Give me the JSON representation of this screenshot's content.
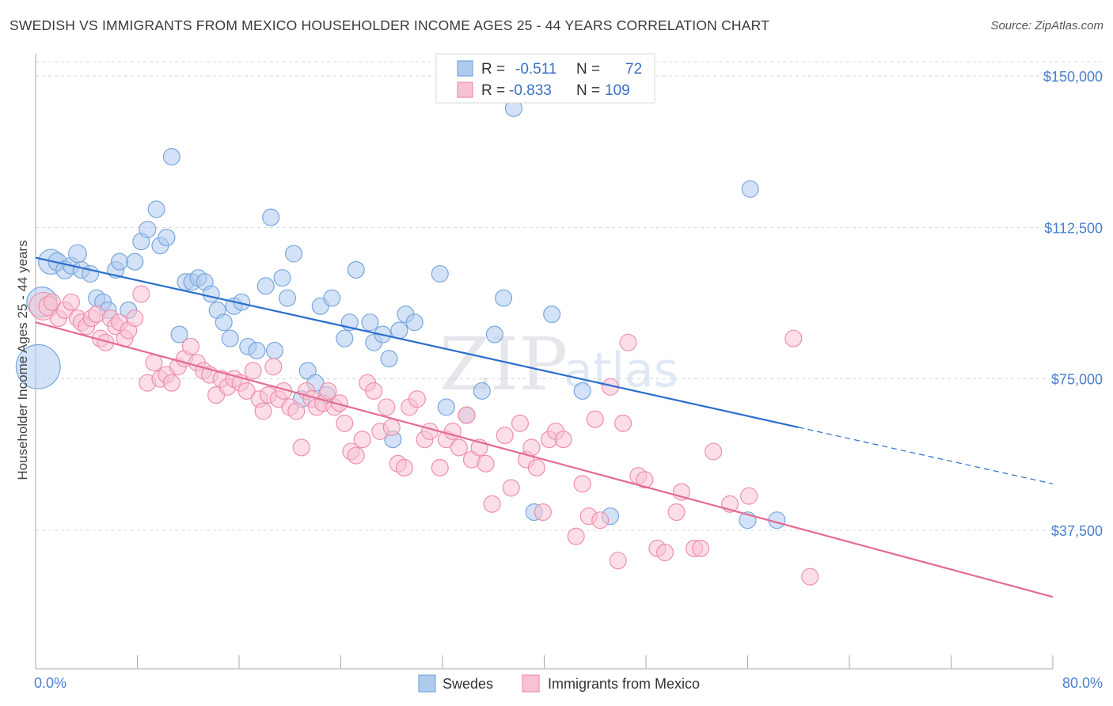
{
  "header": {
    "title": "SWEDISH VS IMMIGRANTS FROM MEXICO HOUSEHOLDER INCOME AGES 25 - 44 YEARS CORRELATION CHART",
    "source": "Source: ZipAtlas.com"
  },
  "watermark": {
    "zip": "ZIP",
    "atlas": "atlas"
  },
  "legend": {
    "r_label": "R =",
    "n_label": "N =",
    "swedes": {
      "r": "-0.511",
      "n": "72"
    },
    "mexico": {
      "r": "-0.833",
      "n": "109"
    }
  },
  "colors": {
    "swedes_fill": "#aecbee",
    "swedes_stroke": "#7aa6dc",
    "swedes_line": "#2a6fcc",
    "mexico_fill": "#f7c3d3",
    "mexico_stroke": "#ee8fac",
    "mexico_line": "#e46b94"
  },
  "chart_data": {
    "type": "scatter",
    "title": "SWEDISH VS IMMIGRANTS FROM MEXICO HOUSEHOLDER INCOME AGES 25 - 44 YEARS CORRELATION CHART",
    "xlabel": "",
    "ylabel": "Householder Income Ages 25 - 44 years",
    "xlim": [
      0,
      80
    ],
    "ylim": [
      0,
      157500
    ],
    "x_tick_labels": [
      "0.0%",
      "80.0%"
    ],
    "y_ticks": [
      37500,
      75000,
      112500,
      150000
    ],
    "y_tick_labels": [
      "$37,500",
      "$75,000",
      "$112,500",
      "$150,000"
    ],
    "legend_position": "top-center",
    "series": [
      {
        "name": "Swedes",
        "r": -0.511,
        "n": 72,
        "trend": {
          "x0": 0,
          "y0": 105000,
          "x1": 60,
          "y1": 63000,
          "dash_to_x": 80,
          "dash_to_y": 49000
        },
        "points": [
          [
            0.2,
            78,
            32
          ],
          [
            0.5,
            94,
            22
          ],
          [
            1.2,
            104,
            18
          ],
          [
            1.7,
            104,
            13
          ],
          [
            2.3,
            102,
            13
          ],
          [
            2.8,
            103,
            12
          ],
          [
            3.3,
            106,
            13
          ],
          [
            3.6,
            102,
            12
          ],
          [
            4.3,
            101,
            12
          ],
          [
            4.8,
            95,
            12
          ],
          [
            5.3,
            94,
            12
          ],
          [
            5.7,
            92,
            12
          ],
          [
            6.3,
            102,
            12
          ],
          [
            6.6,
            104,
            12
          ],
          [
            7.3,
            92,
            12
          ],
          [
            7.8,
            104,
            12
          ],
          [
            8.3,
            109,
            12
          ],
          [
            8.8,
            112,
            12
          ],
          [
            9.5,
            117,
            12
          ],
          [
            9.8,
            108,
            12
          ],
          [
            10.3,
            110,
            12
          ],
          [
            10.7,
            130,
            12
          ],
          [
            11.3,
            86,
            12
          ],
          [
            11.8,
            99,
            12
          ],
          [
            12.3,
            99,
            12
          ],
          [
            12.8,
            100,
            12
          ],
          [
            13.3,
            99,
            12
          ],
          [
            13.8,
            96,
            12
          ],
          [
            14.3,
            92,
            12
          ],
          [
            14.8,
            89,
            12
          ],
          [
            15.3,
            85,
            12
          ],
          [
            15.6,
            93,
            12
          ],
          [
            16.2,
            94,
            12
          ],
          [
            16.7,
            83,
            12
          ],
          [
            17.4,
            82,
            12
          ],
          [
            18.1,
            98,
            12
          ],
          [
            18.5,
            115,
            12
          ],
          [
            18.8,
            82,
            12
          ],
          [
            19.4,
            100,
            12
          ],
          [
            19.8,
            95,
            12
          ],
          [
            20.3,
            106,
            12
          ],
          [
            20.9,
            70,
            12
          ],
          [
            21.4,
            77,
            12
          ],
          [
            22.0,
            74,
            12
          ],
          [
            22.4,
            93,
            12
          ],
          [
            22.9,
            71,
            12
          ],
          [
            23.3,
            95,
            12
          ],
          [
            24.3,
            85,
            12
          ],
          [
            24.7,
            89,
            12
          ],
          [
            25.2,
            102,
            12
          ],
          [
            26.3,
            89,
            12
          ],
          [
            26.6,
            84,
            12
          ],
          [
            27.3,
            86,
            12
          ],
          [
            27.8,
            80,
            12
          ],
          [
            28.1,
            60,
            12
          ],
          [
            28.6,
            87,
            12
          ],
          [
            29.1,
            91,
            12
          ],
          [
            29.8,
            89,
            12
          ],
          [
            31.8,
            101,
            12
          ],
          [
            32.3,
            68,
            12
          ],
          [
            33.9,
            66,
            12
          ],
          [
            35.1,
            72,
            12
          ],
          [
            36.1,
            86,
            12
          ],
          [
            36.8,
            95,
            12
          ],
          [
            37.6,
            142,
            12
          ],
          [
            39.2,
            42,
            12
          ],
          [
            40.6,
            91,
            12
          ],
          [
            43.0,
            72,
            12
          ],
          [
            45.2,
            41,
            12
          ],
          [
            56.2,
            122,
            12
          ],
          [
            56.0,
            40,
            12
          ],
          [
            58.3,
            40,
            12
          ]
        ]
      },
      {
        "name": "Immigrants from Mexico",
        "r": -0.833,
        "n": 109,
        "trend": {
          "x0": 0,
          "y0": 89000,
          "x1": 80,
          "y1": 21000
        },
        "points": [
          [
            0.6,
            93,
            20
          ],
          [
            1.0,
            93,
            14
          ],
          [
            1.3,
            94,
            12
          ],
          [
            1.8,
            90,
            12
          ],
          [
            2.3,
            92,
            12
          ],
          [
            2.8,
            94,
            12
          ],
          [
            3.3,
            90,
            12
          ],
          [
            3.6,
            89,
            12
          ],
          [
            4.0,
            88,
            12
          ],
          [
            4.4,
            90,
            12
          ],
          [
            4.8,
            91,
            12
          ],
          [
            5.1,
            85,
            12
          ],
          [
            5.5,
            84,
            12
          ],
          [
            5.9,
            90,
            12
          ],
          [
            6.3,
            88,
            12
          ],
          [
            6.6,
            89,
            12
          ],
          [
            7.0,
            85,
            12
          ],
          [
            7.3,
            87,
            12
          ],
          [
            7.8,
            90,
            12
          ],
          [
            8.3,
            96,
            12
          ],
          [
            8.8,
            74,
            12
          ],
          [
            9.3,
            79,
            12
          ],
          [
            9.8,
            75,
            12
          ],
          [
            10.3,
            76,
            12
          ],
          [
            10.7,
            74,
            12
          ],
          [
            11.2,
            78,
            12
          ],
          [
            11.7,
            80,
            12
          ],
          [
            12.2,
            83,
            12
          ],
          [
            12.7,
            79,
            12
          ],
          [
            13.2,
            77,
            12
          ],
          [
            13.7,
            76,
            12
          ],
          [
            14.2,
            71,
            12
          ],
          [
            14.6,
            75,
            12
          ],
          [
            15.1,
            73,
            12
          ],
          [
            15.6,
            75,
            12
          ],
          [
            16.1,
            74,
            12
          ],
          [
            16.6,
            72,
            12
          ],
          [
            17.1,
            77,
            12
          ],
          [
            17.6,
            70,
            12
          ],
          [
            17.9,
            67,
            12
          ],
          [
            18.3,
            71,
            12
          ],
          [
            18.7,
            78,
            12
          ],
          [
            19.1,
            70,
            12
          ],
          [
            19.5,
            72,
            12
          ],
          [
            20.0,
            68,
            12
          ],
          [
            20.5,
            67,
            12
          ],
          [
            20.9,
            58,
            12
          ],
          [
            21.3,
            72,
            12
          ],
          [
            21.7,
            70,
            12
          ],
          [
            22.1,
            68,
            12
          ],
          [
            22.6,
            69,
            12
          ],
          [
            23.0,
            72,
            12
          ],
          [
            23.5,
            68,
            12
          ],
          [
            23.9,
            69,
            12
          ],
          [
            24.3,
            64,
            12
          ],
          [
            24.8,
            57,
            12
          ],
          [
            25.2,
            56,
            12
          ],
          [
            25.7,
            60,
            12
          ],
          [
            26.1,
            74,
            12
          ],
          [
            26.6,
            72,
            12
          ],
          [
            27.1,
            62,
            12
          ],
          [
            27.6,
            68,
            12
          ],
          [
            28.0,
            63,
            12
          ],
          [
            28.5,
            54,
            12
          ],
          [
            29.0,
            53,
            12
          ],
          [
            29.4,
            68,
            12
          ],
          [
            30.0,
            70,
            12
          ],
          [
            30.6,
            60,
            12
          ],
          [
            31.0,
            62,
            12
          ],
          [
            31.8,
            53,
            12
          ],
          [
            32.3,
            60,
            12
          ],
          [
            32.8,
            62,
            12
          ],
          [
            33.3,
            58,
            12
          ],
          [
            33.9,
            66,
            12
          ],
          [
            34.3,
            55,
            12
          ],
          [
            34.9,
            58,
            12
          ],
          [
            35.4,
            54,
            12
          ],
          [
            35.9,
            44,
            12
          ],
          [
            36.9,
            61,
            12
          ],
          [
            37.4,
            48,
            12
          ],
          [
            38.1,
            64,
            12
          ],
          [
            38.6,
            55,
            12
          ],
          [
            39.0,
            58,
            12
          ],
          [
            39.4,
            53,
            12
          ],
          [
            39.9,
            42,
            12
          ],
          [
            40.4,
            60,
            12
          ],
          [
            40.9,
            62,
            12
          ],
          [
            41.5,
            60,
            12
          ],
          [
            42.5,
            36,
            12
          ],
          [
            43.0,
            49,
            12
          ],
          [
            43.5,
            41,
            12
          ],
          [
            44.0,
            65,
            12
          ],
          [
            44.4,
            40,
            12
          ],
          [
            45.2,
            73,
            12
          ],
          [
            45.8,
            30,
            12
          ],
          [
            46.2,
            64,
            12
          ],
          [
            46.6,
            84,
            12
          ],
          [
            47.4,
            51,
            12
          ],
          [
            47.9,
            50,
            12
          ],
          [
            48.9,
            33,
            12
          ],
          [
            49.5,
            32,
            12
          ],
          [
            50.4,
            42,
            12
          ],
          [
            50.8,
            47,
            12
          ],
          [
            51.8,
            33,
            12
          ],
          [
            52.3,
            33,
            12
          ],
          [
            53.3,
            57,
            12
          ],
          [
            54.6,
            44,
            12
          ],
          [
            56.1,
            46,
            12
          ],
          [
            59.6,
            85,
            12
          ],
          [
            60.9,
            26,
            12
          ]
        ]
      }
    ]
  },
  "bottom_legend": {
    "swedes": "Swedes",
    "mexico": "Immigrants from Mexico"
  }
}
